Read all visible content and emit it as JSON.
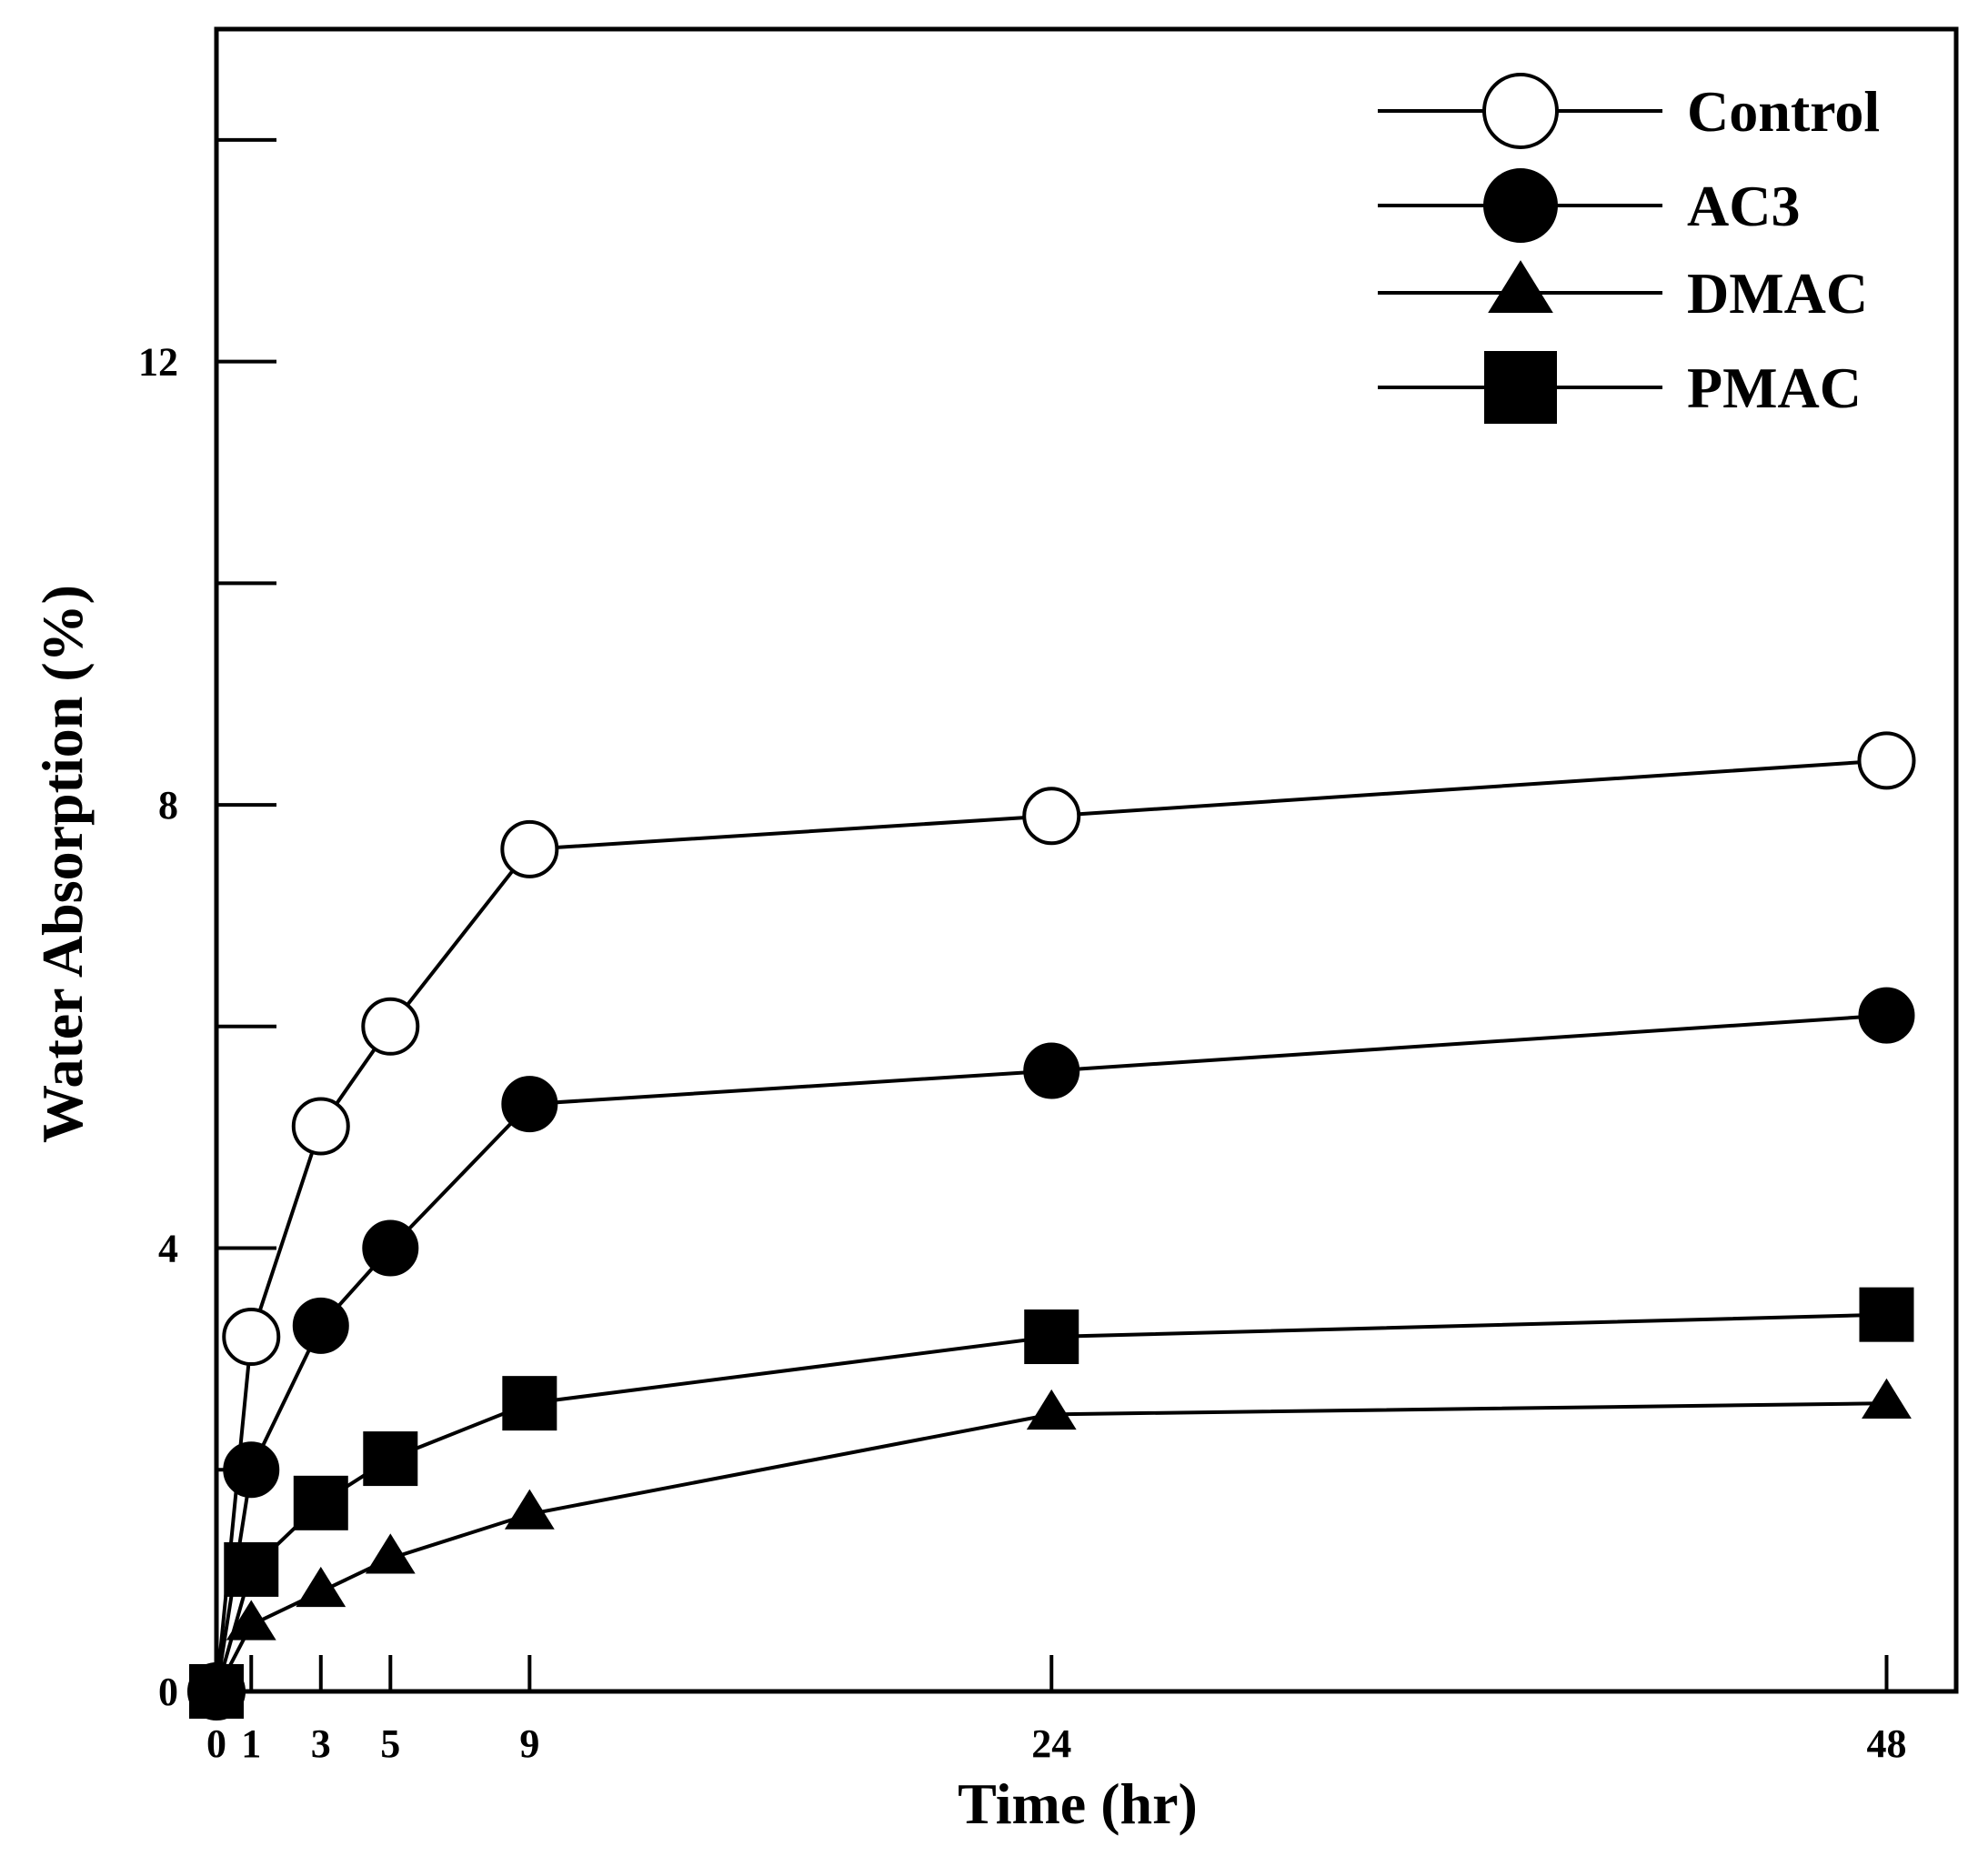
{
  "chart_data": {
    "type": "line",
    "title": "",
    "xlabel": "Time (hr)",
    "ylabel": "Water Absorption (%)",
    "x": [
      0,
      1,
      3,
      5,
      9,
      24,
      48
    ],
    "x_tick_labels": [
      "0",
      "1",
      "3",
      "5",
      "9",
      "24",
      "48"
    ],
    "xlim": [
      0,
      50
    ],
    "ylim": [
      0,
      15
    ],
    "y_ticks": [
      0,
      4,
      8,
      12
    ],
    "y_tick_labels": [
      "0",
      "4",
      "8",
      "12"
    ],
    "y_minor_ticks": [
      2,
      6,
      10,
      14
    ],
    "grid": false,
    "legend_position": "top-right",
    "series": [
      {
        "name": "Control",
        "marker": "open-circle",
        "values": [
          0,
          3.2,
          5.1,
          6.0,
          7.6,
          7.9,
          8.4
        ]
      },
      {
        "name": "AC3",
        "marker": "filled-circle",
        "values": [
          0,
          2.0,
          3.3,
          4.0,
          5.3,
          5.6,
          6.1
        ]
      },
      {
        "name": "DMAC",
        "marker": "filled-triangle",
        "values": [
          0,
          0.6,
          0.9,
          1.2,
          1.6,
          2.5,
          2.6
        ]
      },
      {
        "name": "PMAC",
        "marker": "filled-square",
        "values": [
          0,
          1.1,
          1.7,
          2.1,
          2.6,
          3.2,
          3.4
        ]
      }
    ]
  }
}
